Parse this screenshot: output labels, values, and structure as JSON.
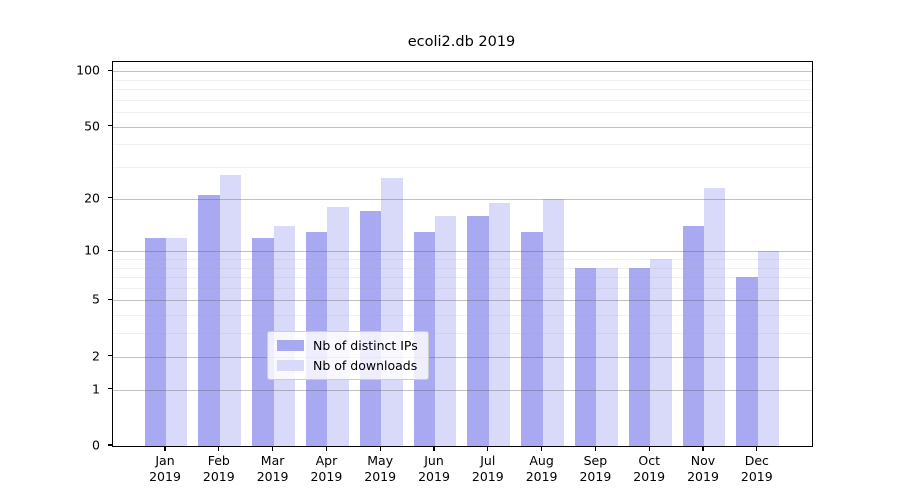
{
  "title": "ecoli2.db 2019",
  "colors": {
    "distinct_ips": "#a9a9f2",
    "downloads": "#d9d9f9",
    "grid_major": "#bdbdbd",
    "grid_minor": "#ebebeb",
    "spine": "#000000",
    "background": "#ffffff"
  },
  "chart_data": {
    "type": "bar",
    "title": "ecoli2.db 2019",
    "xlabel": "",
    "ylabel": "",
    "yscale": "log1p",
    "axis_max": 112,
    "categories": [
      "Jan",
      "Feb",
      "Mar",
      "Apr",
      "May",
      "Jun",
      "Jul",
      "Aug",
      "Sep",
      "Oct",
      "Nov",
      "Dec"
    ],
    "year": "2019",
    "series": [
      {
        "name": "Nb of distinct IPs",
        "values": [
          12,
          21,
          12,
          13,
          17,
          13,
          16,
          13,
          8,
          8,
          14,
          7
        ]
      },
      {
        "name": "Nb of downloads",
        "values": [
          12,
          27,
          14,
          18,
          26,
          16,
          19,
          20,
          8,
          9,
          23,
          10
        ]
      }
    ],
    "yticks": [
      100,
      50,
      20,
      10,
      5,
      2,
      1,
      0
    ],
    "grid_major_values": [
      1,
      2,
      5,
      10,
      20,
      50,
      100
    ],
    "grid_minor_values": [
      3,
      4,
      6,
      7,
      8,
      9,
      30,
      40,
      60,
      70,
      80,
      90
    ],
    "grid": true,
    "legend_position": "lower-center"
  },
  "legend": {
    "items": [
      {
        "label": "Nb of distinct IPs"
      },
      {
        "label": "Nb of downloads"
      }
    ]
  }
}
